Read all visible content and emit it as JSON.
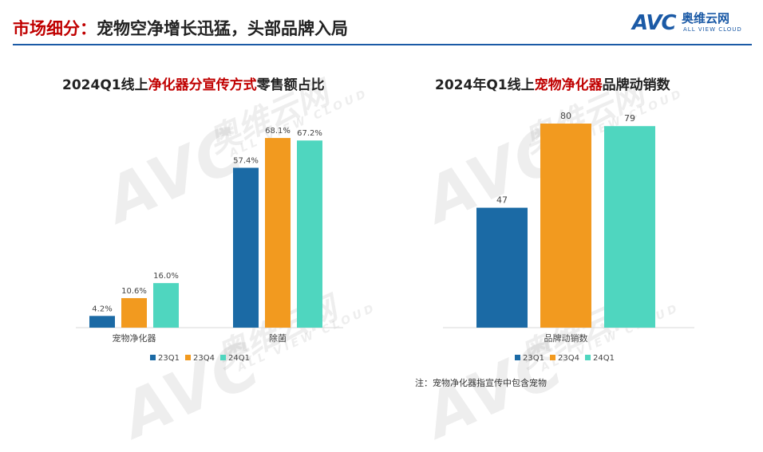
{
  "header": {
    "title_prefix": "市场细分：",
    "title_main": "宠物空净增长迅猛，头部品牌入局"
  },
  "logo": {
    "mark": "AVC",
    "cn": "奥维云网",
    "en": "ALL VIEW CLOUD"
  },
  "watermark": {
    "mark": "AVC",
    "cn": "奥维云网",
    "en": "ALL VIEW CLOUD"
  },
  "footnote": "注：宠物净化器指宣传中包含宠物",
  "colors": {
    "23Q1": "#1b6aa5",
    "23Q4": "#f29a1f",
    "24Q1": "#4fd6bf",
    "accent": "#c00000",
    "rule": "#1b5aa6"
  },
  "chart_data": [
    {
      "type": "bar",
      "title_parts": [
        "2024Q1线上",
        "净化器分宣传方式",
        "零售额占比"
      ],
      "categories": [
        "宠物净化器",
        "除菌"
      ],
      "series": [
        {
          "name": "23Q1",
          "values": [
            4.2,
            57.4
          ],
          "labels": [
            "4.2%",
            "57.4%"
          ]
        },
        {
          "name": "23Q4",
          "values": [
            10.6,
            68.1
          ],
          "labels": [
            "10.6%",
            "68.1%"
          ]
        },
        {
          "name": "24Q1",
          "values": [
            16.0,
            67.2
          ],
          "labels": [
            "16.0%",
            "67.2%"
          ]
        }
      ],
      "unit": "%",
      "ylim": [
        0,
        75
      ],
      "legend": "bottom",
      "grid": false
    },
    {
      "type": "bar",
      "title_parts": [
        "2024年Q1线上",
        "宠物净化器",
        "品牌动销数"
      ],
      "categories": [
        "品牌动销数"
      ],
      "series": [
        {
          "name": "23Q1",
          "values": [
            47
          ],
          "labels": [
            "47"
          ]
        },
        {
          "name": "23Q4",
          "values": [
            80
          ],
          "labels": [
            "80"
          ]
        },
        {
          "name": "24Q1",
          "values": [
            79
          ],
          "labels": [
            "79"
          ]
        }
      ],
      "ylim": [
        0,
        85
      ],
      "legend": "bottom",
      "grid": false
    }
  ]
}
